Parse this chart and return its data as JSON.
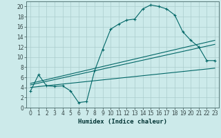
{
  "xlabel": "Humidex (Indice chaleur)",
  "background_color": "#cceaea",
  "grid_color": "#aacccc",
  "line_color": "#006666",
  "xlim": [
    -0.5,
    23.5
  ],
  "ylim": [
    0,
    21
  ],
  "xticks": [
    0,
    1,
    2,
    3,
    4,
    5,
    6,
    7,
    8,
    9,
    10,
    11,
    12,
    13,
    14,
    15,
    16,
    17,
    18,
    19,
    20,
    21,
    22,
    23
  ],
  "yticks": [
    0,
    2,
    4,
    6,
    8,
    10,
    12,
    14,
    16,
    18,
    20
  ],
  "series1_x": [
    0,
    1,
    2,
    3,
    4,
    5,
    6,
    7,
    8,
    9,
    10,
    11,
    12,
    13,
    14,
    15,
    16,
    17,
    18,
    19,
    20,
    21,
    22,
    23
  ],
  "series1_y": [
    3.3,
    6.5,
    4.3,
    4.2,
    4.3,
    3.3,
    1.0,
    1.2,
    7.3,
    11.5,
    15.5,
    16.5,
    17.3,
    17.5,
    19.5,
    20.3,
    20.0,
    19.5,
    18.3,
    15.0,
    13.3,
    12.0,
    9.3,
    9.3
  ],
  "series2_x": [
    0,
    23
  ],
  "series2_y": [
    4.0,
    7.8
  ],
  "series3_x": [
    0,
    23
  ],
  "series3_y": [
    4.5,
    12.5
  ],
  "series4_x": [
    0,
    23
  ],
  "series4_y": [
    4.8,
    13.3
  ],
  "xlabel_fontsize": 6.5,
  "tick_fontsize": 5.5
}
